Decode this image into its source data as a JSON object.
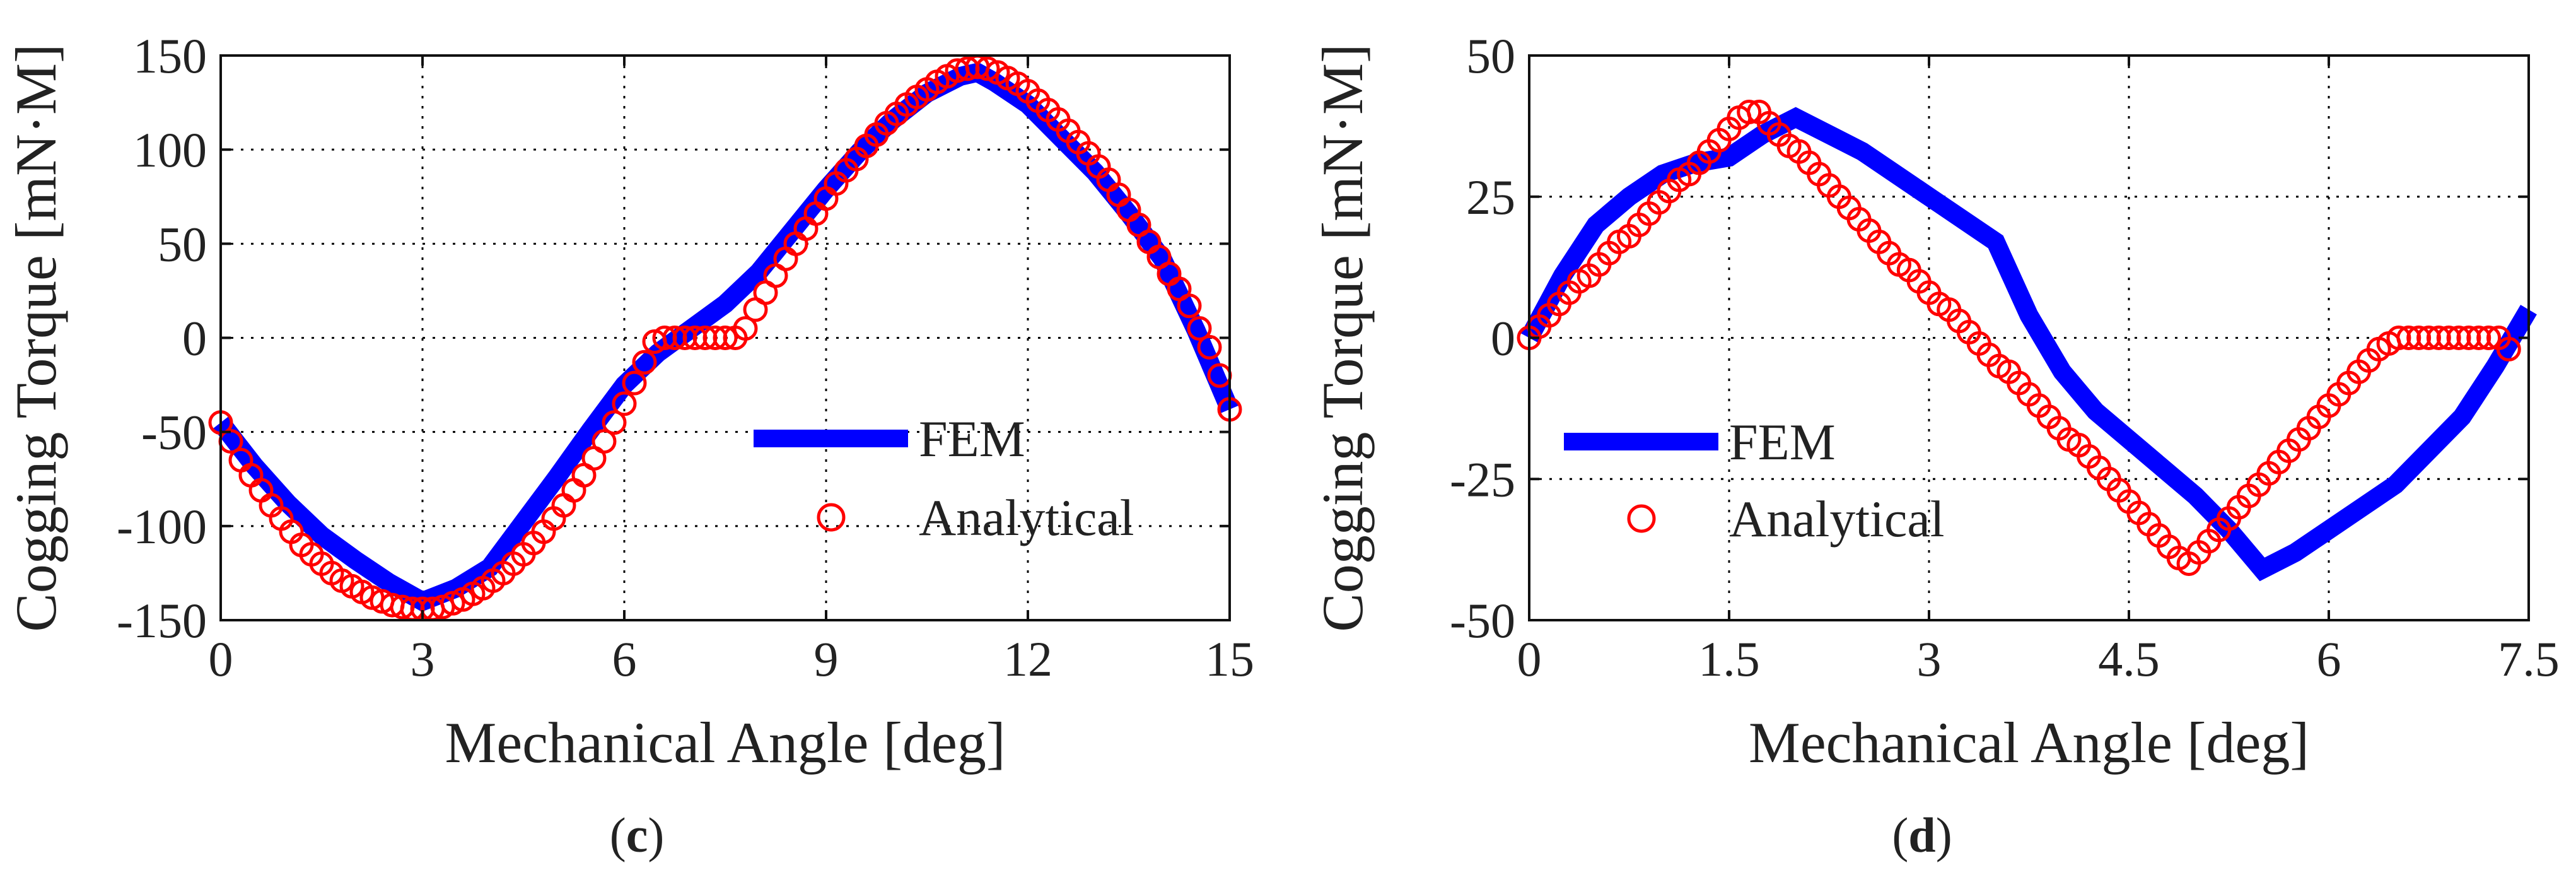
{
  "chart_data": [
    {
      "panel": "c",
      "type": "line",
      "xlabel": "Mechanical Angle [deg]",
      "ylabel": "Cogging Torque [mN·M]",
      "xlim": [
        0,
        15
      ],
      "ylim": [
        -150,
        150
      ],
      "xticks": [
        0,
        3,
        6,
        9,
        12,
        15
      ],
      "yticks": [
        -150,
        -100,
        -50,
        0,
        50,
        100,
        150
      ],
      "grid": true,
      "legend_position": "bottom-right",
      "series": [
        {
          "name": "FEM",
          "style": "line",
          "color": "#0000ff",
          "x": [
            0,
            0.5,
            1,
            1.5,
            2,
            2.5,
            3,
            3.5,
            4,
            4.5,
            5,
            5.5,
            6,
            6.5,
            7,
            7.5,
            8,
            8.5,
            9,
            9.5,
            10,
            10.5,
            11,
            11.25,
            11.5,
            12,
            12.5,
            13,
            13.5,
            14,
            14.5,
            15
          ],
          "y": [
            -45,
            -68,
            -88,
            -105,
            -118,
            -130,
            -140,
            -133,
            -122,
            -98,
            -74,
            -49,
            -25,
            -8,
            5,
            18,
            35,
            57,
            79,
            99,
            116,
            130,
            139,
            141,
            136,
            124,
            106,
            88,
            66,
            42,
            4,
            -38
          ]
        },
        {
          "name": "Analytical",
          "style": "markers",
          "marker": "open-circle",
          "color": "#ff0000",
          "x": [
            0,
            0.15,
            0.3,
            0.45,
            0.6,
            0.75,
            0.9,
            1.05,
            1.2,
            1.35,
            1.5,
            1.65,
            1.8,
            1.95,
            2.1,
            2.25,
            2.4,
            2.55,
            2.7,
            2.85,
            3,
            3.15,
            3.3,
            3.45,
            3.6,
            3.75,
            3.9,
            4.05,
            4.2,
            4.35,
            4.5,
            4.65,
            4.8,
            4.95,
            5.1,
            5.25,
            5.4,
            5.55,
            5.7,
            5.85,
            6,
            6.15,
            6.3,
            6.45,
            6.6,
            6.75,
            6.9,
            7.05,
            7.2,
            7.35,
            7.5,
            7.65,
            7.8,
            7.95,
            8.1,
            8.25,
            8.4,
            8.55,
            8.7,
            8.85,
            9,
            9.15,
            9.3,
            9.45,
            9.6,
            9.75,
            9.9,
            10.05,
            10.2,
            10.35,
            10.5,
            10.65,
            10.8,
            10.95,
            11.1,
            11.25,
            11.4,
            11.55,
            11.7,
            11.85,
            12,
            12.15,
            12.3,
            12.45,
            12.6,
            12.75,
            12.9,
            13.05,
            13.2,
            13.35,
            13.5,
            13.65,
            13.8,
            13.95,
            14.1,
            14.25,
            14.4,
            14.55,
            14.7,
            14.85,
            15
          ],
          "y": [
            -45,
            -55,
            -65,
            -73,
            -81,
            -89,
            -96,
            -103,
            -110,
            -115,
            -120,
            -125,
            -129,
            -132,
            -135,
            -138,
            -140,
            -142,
            -143,
            -144,
            -144,
            -144,
            -143,
            -141,
            -139,
            -136,
            -133,
            -129,
            -125,
            -120,
            -115,
            -109,
            -103,
            -96,
            -89,
            -81,
            -73,
            -64,
            -55,
            -45,
            -35,
            -24,
            -13,
            -2,
            0,
            0,
            0,
            0,
            0,
            0,
            0,
            0,
            5,
            15,
            24,
            33,
            42,
            50,
            58,
            66,
            74,
            82,
            89,
            95,
            102,
            108,
            114,
            119,
            124,
            128,
            132,
            136,
            139,
            142,
            143,
            144,
            143,
            141,
            138,
            135,
            131,
            126,
            121,
            116,
            110,
            104,
            98,
            91,
            84,
            76,
            68,
            60,
            51,
            43,
            34,
            26,
            17,
            5,
            -5,
            -20,
            -38
          ]
        }
      ]
    },
    {
      "panel": "d",
      "type": "line",
      "xlabel": "Mechanical Angle [deg]",
      "ylabel": "Cogging Torque [mN·M]",
      "xlim": [
        0,
        7.5
      ],
      "ylim": [
        -50,
        50
      ],
      "xticks": [
        0,
        1.5,
        3,
        4.5,
        6,
        7.5
      ],
      "yticks": [
        -50,
        -25,
        0,
        25,
        50
      ],
      "grid": true,
      "legend_position": "bottom-left",
      "series": [
        {
          "name": "FEM",
          "style": "line",
          "color": "#0000ff",
          "x": [
            0,
            0.25,
            0.5,
            0.75,
            1,
            1.25,
            1.5,
            1.75,
            2,
            2.5,
            3,
            3.5,
            3.75,
            4,
            4.25,
            4.5,
            4.75,
            5,
            5.25,
            5.5,
            5.75,
            6,
            6.25,
            6.5,
            6.75,
            7,
            7.25,
            7.5
          ],
          "y": [
            0,
            11,
            20,
            25,
            29,
            31,
            32,
            36,
            39,
            33,
            25,
            17,
            4,
            -6,
            -13,
            -18,
            -23,
            -28,
            -34,
            -41,
            -38,
            -34,
            -30,
            -26,
            -20,
            -14,
            -5,
            5
          ]
        },
        {
          "name": "Analytical",
          "style": "markers",
          "marker": "open-circle",
          "color": "#ff0000",
          "x": [
            0,
            0.075,
            0.15,
            0.225,
            0.3,
            0.375,
            0.45,
            0.525,
            0.6,
            0.675,
            0.75,
            0.825,
            0.9,
            0.975,
            1.05,
            1.125,
            1.2,
            1.275,
            1.35,
            1.425,
            1.5,
            1.575,
            1.65,
            1.725,
            1.8,
            1.875,
            1.95,
            2.025,
            2.1,
            2.175,
            2.25,
            2.325,
            2.4,
            2.475,
            2.55,
            2.625,
            2.7,
            2.775,
            2.85,
            2.925,
            3,
            3.075,
            3.15,
            3.225,
            3.3,
            3.375,
            3.45,
            3.525,
            3.6,
            3.675,
            3.75,
            3.825,
            3.9,
            3.975,
            4.05,
            4.125,
            4.2,
            4.275,
            4.35,
            4.425,
            4.5,
            4.575,
            4.65,
            4.725,
            4.8,
            4.875,
            4.95,
            5.025,
            5.1,
            5.175,
            5.25,
            5.325,
            5.4,
            5.475,
            5.55,
            5.625,
            5.7,
            5.775,
            5.85,
            5.925,
            6,
            6.075,
            6.15,
            6.225,
            6.3,
            6.375,
            6.45,
            6.525,
            6.6,
            6.675,
            6.75,
            6.825,
            6.9,
            6.975,
            7.05,
            7.125,
            7.2,
            7.275,
            7.35
          ],
          "y": [
            0,
            2,
            4,
            6,
            8,
            10,
            11,
            13,
            15,
            17,
            18,
            20,
            22,
            24,
            26,
            28,
            29,
            31,
            33,
            35,
            37,
            39,
            40,
            40,
            38,
            36,
            34,
            33,
            31,
            29,
            27,
            25,
            23,
            21,
            19,
            17,
            15,
            13,
            12,
            10,
            8,
            6,
            5,
            3,
            1,
            -1,
            -3,
            -5,
            -6,
            -8,
            -10,
            -12,
            -14,
            -16,
            -18,
            -19,
            -21,
            -23,
            -25,
            -27,
            -29,
            -31,
            -33,
            -35,
            -37,
            -39,
            -40,
            -38,
            -36,
            -34,
            -32,
            -30,
            -28,
            -26,
            -24,
            -22,
            -20,
            -18,
            -16,
            -14,
            -12,
            -10,
            -8,
            -6,
            -4,
            -2,
            -1,
            0,
            0,
            0,
            0,
            0,
            0,
            0,
            0,
            0,
            0,
            0,
            -2
          ]
        }
      ]
    }
  ]
}
